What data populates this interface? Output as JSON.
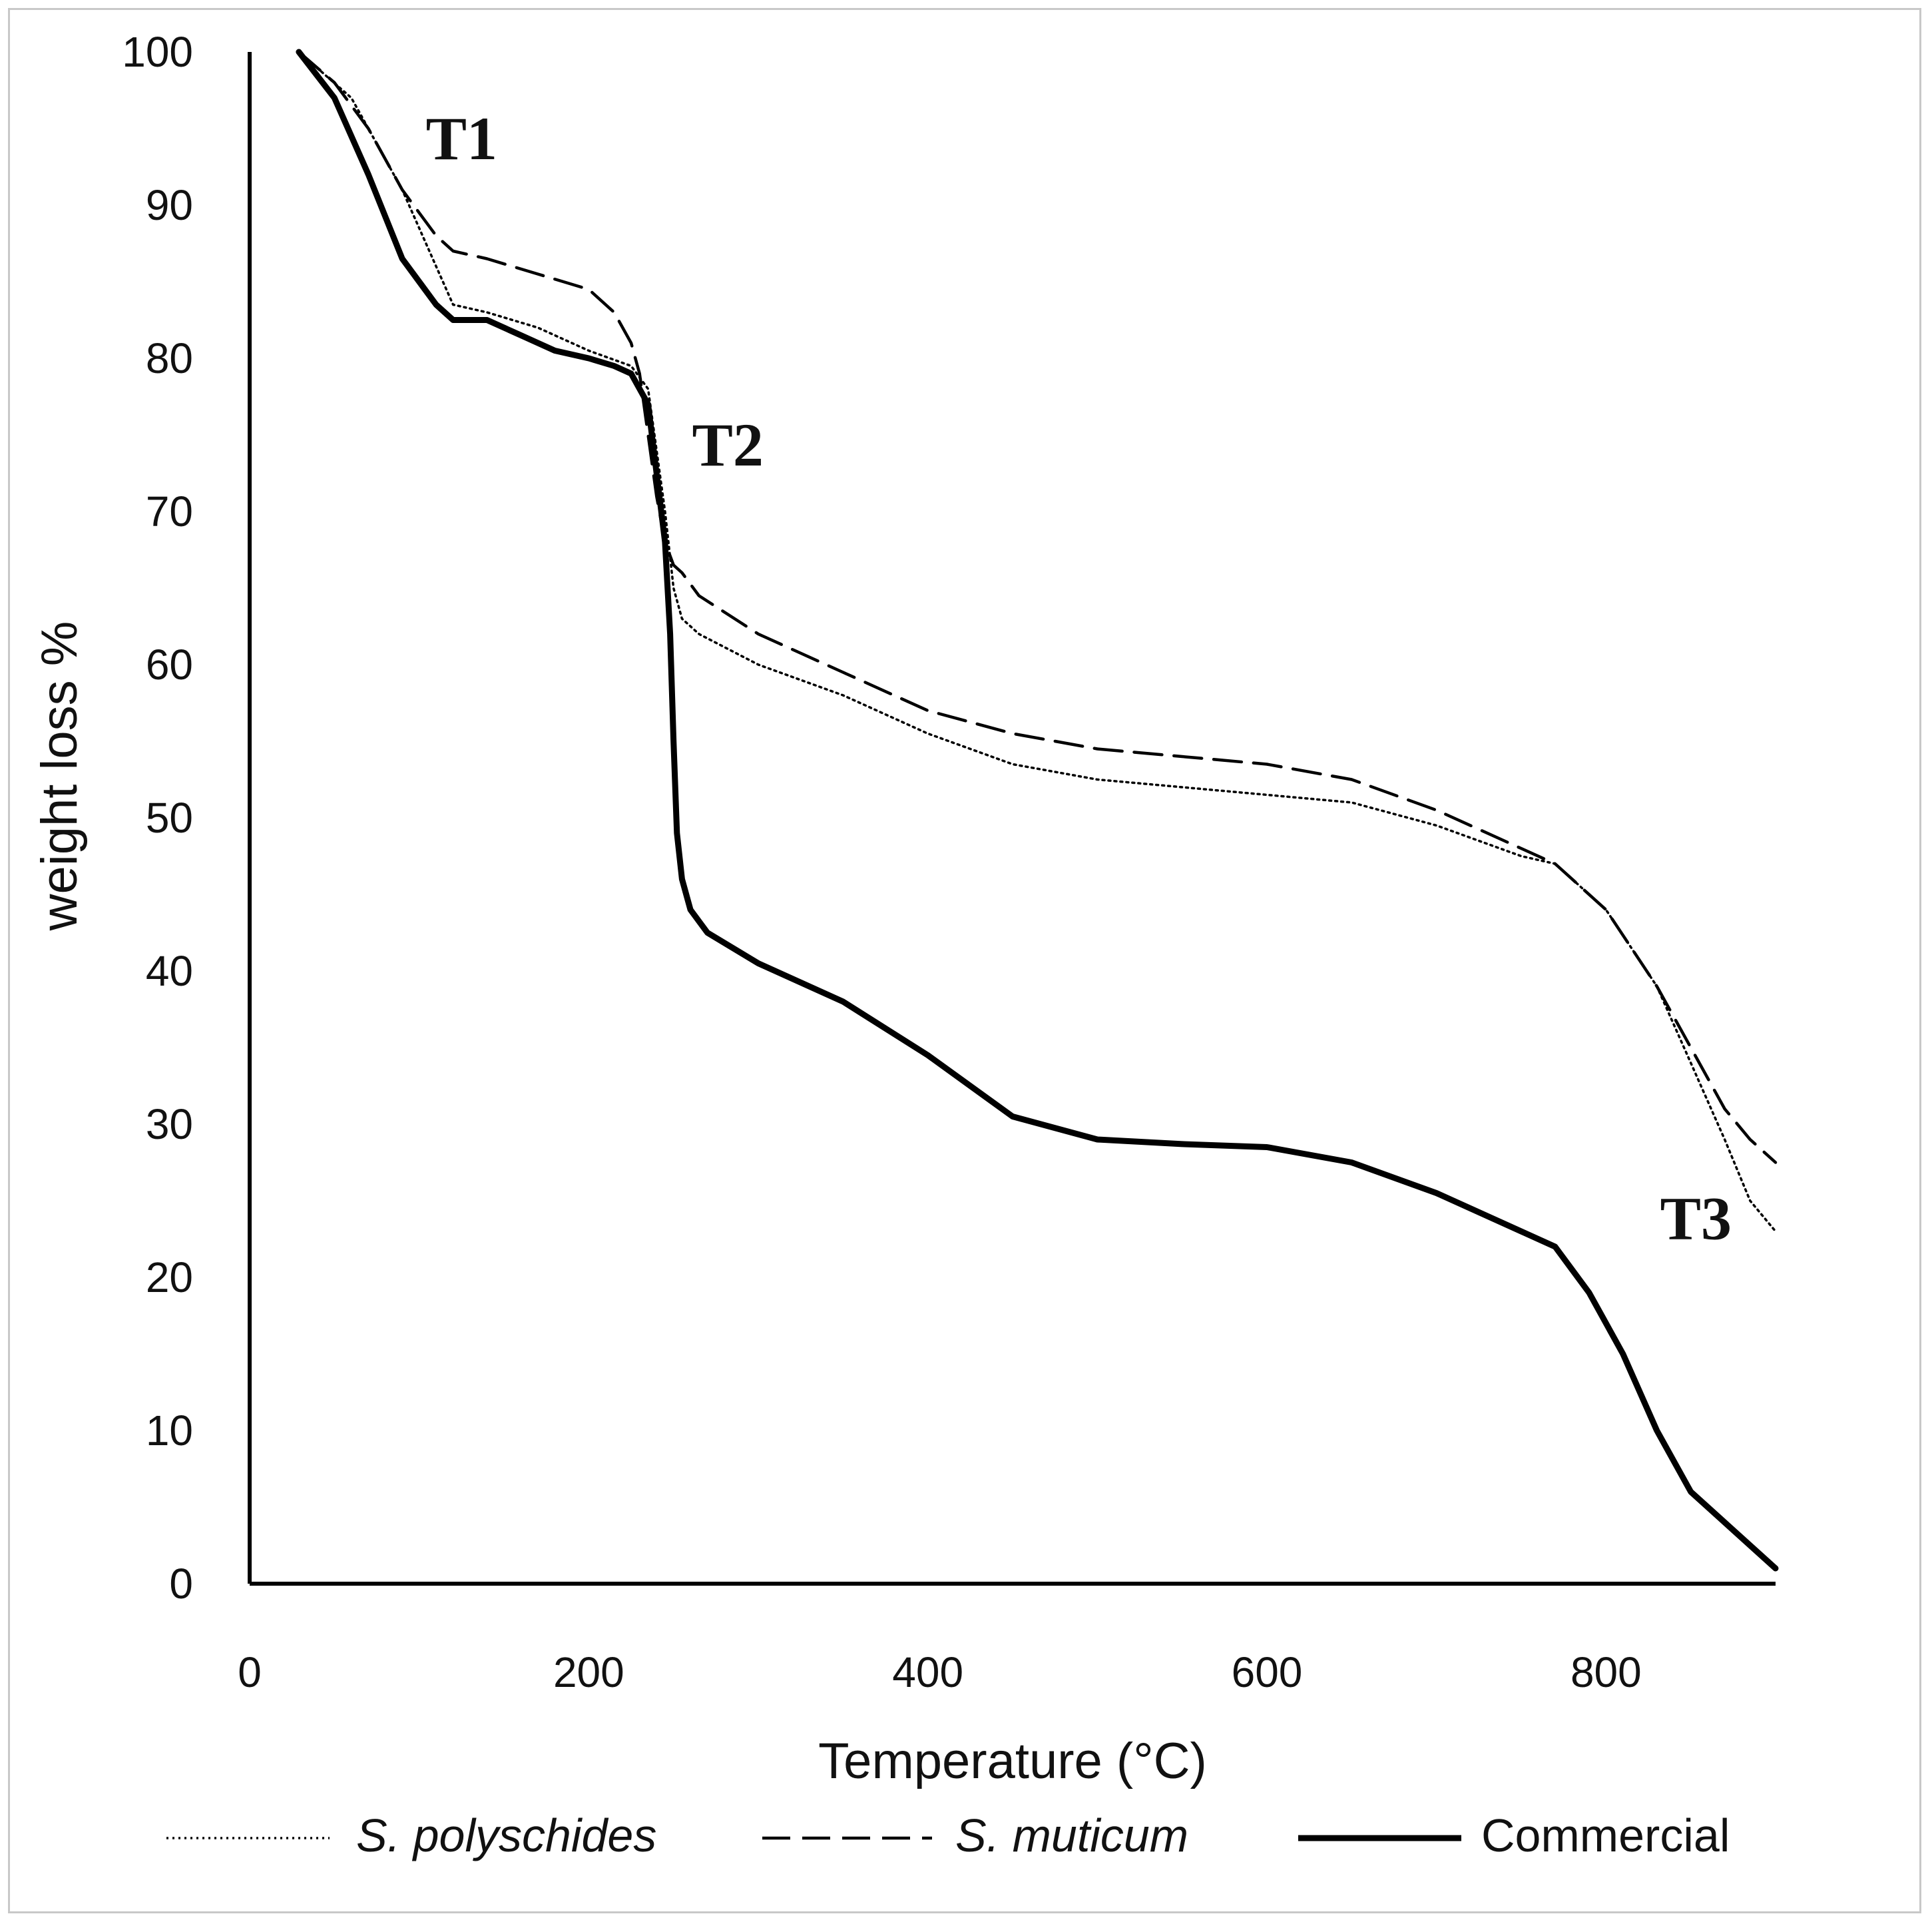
{
  "chart_data": {
    "type": "line",
    "title": "",
    "xlabel": "Temperature (°C)",
    "ylabel": "weight loss %",
    "xlim": [
      0,
      900
    ],
    "ylim": [
      0,
      100
    ],
    "xticks": [
      "0",
      "200",
      "400",
      "600",
      "800"
    ],
    "yticks": [
      "0",
      "10",
      "20",
      "30",
      "40",
      "50",
      "60",
      "70",
      "80",
      "90",
      "100"
    ],
    "grid": false,
    "legend_position": "bottom",
    "series": [
      {
        "name": "S. polyschides",
        "style": "dotted",
        "italic": true,
        "x": [
          29,
          60,
          90,
          110,
          120,
          140,
          170,
          200,
          225,
          235,
          240,
          245,
          250,
          255,
          265,
          300,
          350,
          400,
          450,
          500,
          550,
          600,
          650,
          700,
          750,
          770,
          800,
          830,
          850,
          870,
          885,
          900
        ],
        "y": [
          100,
          97,
          91,
          86,
          83.5,
          83,
          82,
          80.5,
          79.5,
          78,
          74,
          70,
          65,
          63,
          62,
          60,
          58,
          55.5,
          53.5,
          52.5,
          52,
          51.5,
          51,
          49.5,
          47.5,
          47,
          44,
          39,
          34,
          29,
          25,
          23
        ]
      },
      {
        "name": "S. muticum",
        "style": "dashed",
        "italic": true,
        "x": [
          29,
          50,
          70,
          90,
          110,
          120,
          140,
          170,
          200,
          215,
          225,
          230,
          235,
          240,
          245,
          250,
          255,
          265,
          300,
          350,
          400,
          450,
          500,
          550,
          600,
          650,
          700,
          750,
          770,
          800,
          830,
          850,
          870,
          885,
          900
        ],
        "y": [
          100,
          98,
          95,
          91,
          88,
          87,
          86.5,
          85.5,
          84.5,
          83,
          81,
          79,
          75,
          71,
          68,
          66.5,
          66,
          64.5,
          62,
          59.5,
          57,
          55.5,
          54.5,
          54,
          53.5,
          52.5,
          50.5,
          48,
          47,
          44,
          39,
          35,
          31,
          29,
          27.5
        ]
      },
      {
        "name": "Commercial",
        "style": "solid",
        "italic": false,
        "x": [
          29,
          50,
          70,
          90,
          110,
          120,
          140,
          160,
          180,
          200,
          215,
          225,
          235,
          240,
          245,
          248,
          250,
          252,
          255,
          260,
          270,
          300,
          350,
          400,
          450,
          500,
          550,
          600,
          650,
          700,
          750,
          770,
          790,
          810,
          830,
          850,
          870,
          890,
          900
        ],
        "y": [
          100,
          97,
          92,
          86.5,
          83.5,
          82.5,
          82.5,
          81.5,
          80.5,
          80,
          79.5,
          79,
          77,
          72.5,
          68,
          62,
          55,
          49,
          46,
          44,
          42.5,
          40.5,
          38,
          34.5,
          30.5,
          29,
          28.7,
          28.5,
          27.5,
          25.5,
          23,
          22,
          19,
          15,
          10,
          6,
          4,
          2,
          1
        ]
      }
    ],
    "annotations": [
      {
        "text": "T1",
        "x": 125,
        "y": 93
      },
      {
        "text": "T2",
        "x": 282,
        "y": 73
      },
      {
        "text": "T3",
        "x": 853,
        "y": 22.5
      }
    ]
  }
}
